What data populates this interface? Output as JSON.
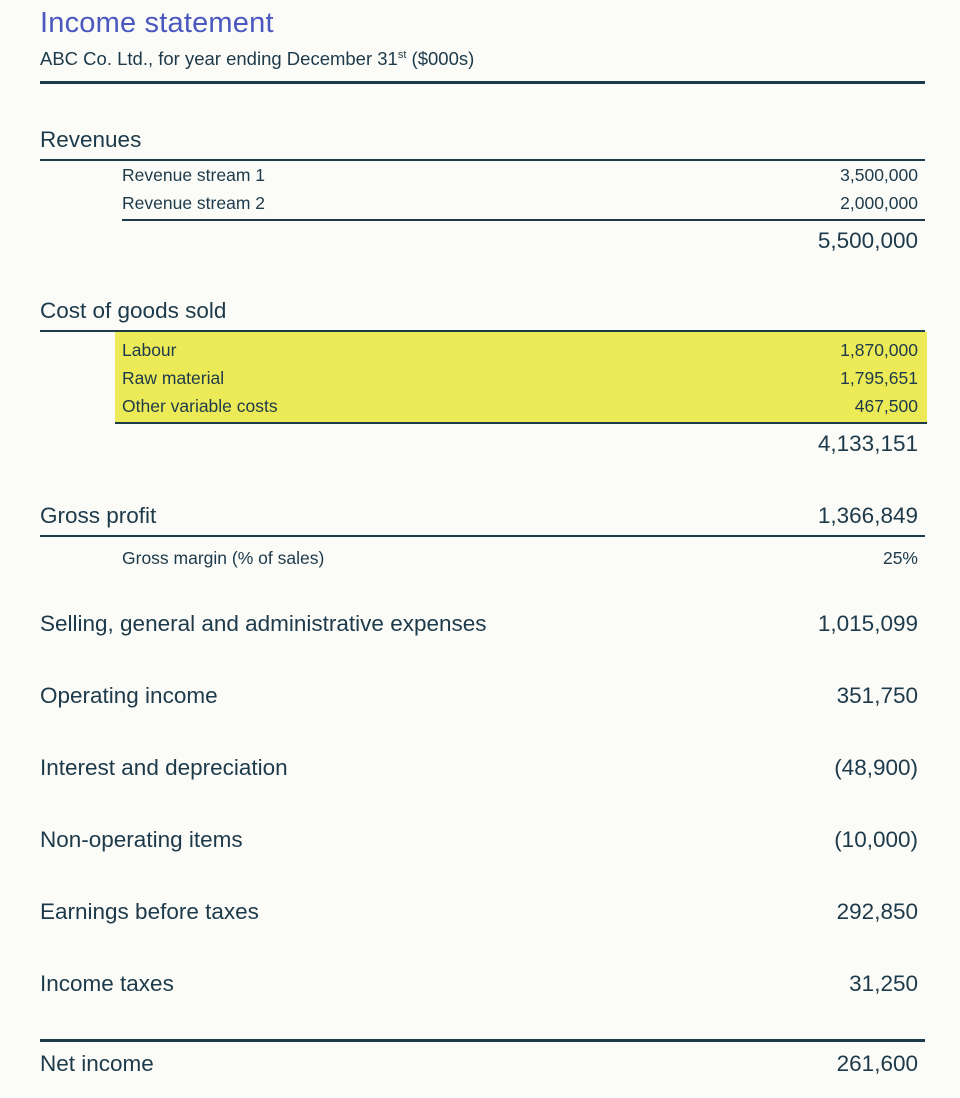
{
  "document": {
    "title": "Income statement",
    "subtitle_prefix": "ABC Co. Ltd., for year ending December 31",
    "subtitle_superscript": "st",
    "subtitle_suffix": " ($000s)"
  },
  "colors": {
    "accent_title": "#4a58bf",
    "text_ink": "#1d3a4a",
    "highlight_yellow": "#edea57",
    "background": "#fbfbf8"
  },
  "revenues": {
    "label": "Revenues",
    "items": [
      {
        "label": "Revenue stream 1",
        "value": "3,500,000"
      },
      {
        "label": "Revenue stream 2",
        "value": "2,000,000"
      }
    ],
    "total": "5,500,000"
  },
  "cogs": {
    "label": "Cost of goods sold",
    "items": [
      {
        "label": "Labour",
        "value": "1,870,000"
      },
      {
        "label": "Raw material",
        "value": "1,795,651"
      },
      {
        "label": "Other variable costs",
        "value": "467,500"
      }
    ],
    "total": "4,133,151"
  },
  "gross_profit": {
    "label": "Gross profit",
    "value": "1,366,849"
  },
  "gross_margin": {
    "label": "Gross margin (% of sales)",
    "value": "25%"
  },
  "rows": [
    {
      "label": "Selling, general and administrative expenses",
      "value": "1,015,099"
    },
    {
      "label": "Operating income",
      "value": "351,750"
    },
    {
      "label": "Interest and depreciation",
      "value": "(48,900)"
    },
    {
      "label": "Non-operating items",
      "value": "(10,000)"
    },
    {
      "label": "Earnings before taxes",
      "value": "292,850"
    },
    {
      "label": "Income taxes",
      "value": "31,250"
    }
  ],
  "net_income": {
    "label": "Net income",
    "value": "261,600"
  }
}
